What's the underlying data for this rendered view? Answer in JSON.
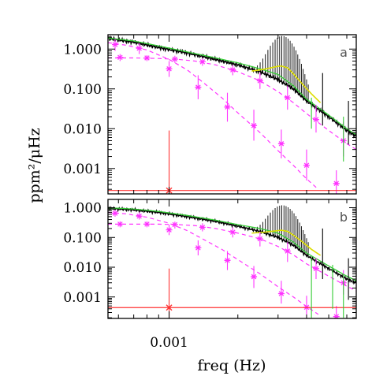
{
  "figure": {
    "xlabel": "freq (Hz)",
    "ylabel": "ppm²/μHz"
  },
  "chart_data": [
    {
      "type": "line",
      "panel_label": "a",
      "xscale": "log",
      "yscale": "log",
      "xlim": [
        0.00054,
        0.0066
      ],
      "ylim": [
        0.00023,
        2.3
      ],
      "x_tick_labels": [
        {
          "value": 0.001,
          "label": "0.001"
        }
      ],
      "y_tick_labels": [
        {
          "value": 1,
          "label": "1.000"
        },
        {
          "value": 0.1,
          "label": "0.100"
        },
        {
          "value": 0.01,
          "label": "0.010"
        },
        {
          "value": 0.001,
          "label": "0.001"
        }
      ],
      "series": [
        {
          "kind": "spectrum",
          "color": "#000000",
          "points": [
            [
              0.00054,
              1.85
            ],
            [
              0.0007,
              1.5
            ],
            [
              0.0009,
              1.1
            ],
            [
              0.0012,
              0.8
            ],
            [
              0.0016,
              0.55
            ],
            [
              0.002,
              0.4
            ],
            [
              0.0025,
              0.27
            ],
            [
              0.003,
              0.17
            ],
            [
              0.0035,
              0.1
            ],
            [
              0.004,
              0.05
            ],
            [
              0.005,
              0.02
            ],
            [
              0.006,
              0.009
            ],
            [
              0.0066,
              0.0065
            ]
          ],
          "peaks": {
            "center": 0.0031,
            "start": 0.0023,
            "end": 0.0041,
            "spacing": 6.8e-05,
            "max": 2.3,
            "width": 0.15
          }
        },
        {
          "kind": "fit",
          "color": "#33cc33",
          "points": [
            [
              0.00054,
              1.9
            ],
            [
              0.0007,
              1.6
            ],
            [
              0.0009,
              1.2
            ],
            [
              0.0012,
              0.85
            ],
            [
              0.0016,
              0.6
            ],
            [
              0.002,
              0.45
            ],
            [
              0.0025,
              0.32
            ],
            [
              0.003,
              0.23
            ],
            [
              0.0035,
              0.12
            ],
            [
              0.004,
              0.055
            ],
            [
              0.005,
              0.022
            ],
            [
              0.006,
              0.01
            ],
            [
              0.0066,
              0.007
            ]
          ]
        },
        {
          "kind": "smooth",
          "color": "#dddd00",
          "points": [
            [
              0.0023,
              0.28
            ],
            [
              0.0026,
              0.31
            ],
            [
              0.0028,
              0.34
            ],
            [
              0.003,
              0.37
            ],
            [
              0.0031,
              0.375
            ],
            [
              0.0033,
              0.34
            ],
            [
              0.0035,
              0.24
            ],
            [
              0.0038,
              0.14
            ],
            [
              0.0042,
              0.075
            ],
            [
              0.0046,
              0.045
            ]
          ]
        },
        {
          "kind": "component",
          "color": "#ff33ff",
          "points": [
            [
              0.00054,
              1.45
            ],
            [
              0.00065,
              1.25
            ],
            [
              0.0008,
              0.95
            ],
            [
              0.001,
              0.55
            ],
            [
              0.0012,
              0.3
            ],
            [
              0.0014,
              0.15
            ],
            [
              0.0017,
              0.06
            ],
            [
              0.002,
              0.025
            ],
            [
              0.0025,
              0.008
            ],
            [
              0.003,
              0.0028
            ],
            [
              0.0035,
              0.0012
            ],
            [
              0.004,
              0.00055
            ],
            [
              0.0045,
              0.0003
            ]
          ],
          "markers": [
            {
              "x": 0.00058,
              "y": 1.3,
              "lo": 0.9,
              "hi": 1.8
            },
            {
              "x": 0.00074,
              "y": 1.05,
              "lo": 0.75,
              "hi": 1.4
            },
            {
              "x": 0.001,
              "y": 0.32,
              "lo": 0.2,
              "hi": 0.5
            },
            {
              "x": 0.00134,
              "y": 0.11,
              "lo": 0.055,
              "hi": 0.22
            },
            {
              "x": 0.0018,
              "y": 0.035,
              "lo": 0.015,
              "hi": 0.08
            },
            {
              "x": 0.00235,
              "y": 0.012,
              "lo": 0.005,
              "hi": 0.03
            },
            {
              "x": 0.0031,
              "y": 0.0042,
              "lo": 0.0018,
              "hi": 0.0095
            },
            {
              "x": 0.004,
              "y": 0.0012,
              "lo": 0.0005,
              "hi": 0.003
            },
            {
              "x": 0.0054,
              "y": 0.00042,
              "lo": 0.00023,
              "hi": 0.0009
            }
          ]
        },
        {
          "kind": "component",
          "color": "#ff33ff",
          "points": [
            [
              0.00054,
              0.6
            ],
            [
              0.0007,
              0.6
            ],
            [
              0.0009,
              0.58
            ],
            [
              0.0011,
              0.55
            ],
            [
              0.0013,
              0.5
            ],
            [
              0.0016,
              0.4
            ],
            [
              0.002,
              0.27
            ],
            [
              0.0025,
              0.16
            ],
            [
              0.003,
              0.085
            ],
            [
              0.0035,
              0.045
            ],
            [
              0.004,
              0.024
            ],
            [
              0.005,
              0.009
            ],
            [
              0.006,
              0.0042
            ],
            [
              0.0066,
              0.003
            ]
          ],
          "markers": [
            {
              "x": 0.00061,
              "y": 0.62,
              "lo": 0.5,
              "hi": 0.75
            },
            {
              "x": 0.0008,
              "y": 0.6,
              "lo": 0.5,
              "hi": 0.7
            },
            {
              "x": 0.00106,
              "y": 0.56,
              "lo": 0.45,
              "hi": 0.68
            },
            {
              "x": 0.0014,
              "y": 0.48,
              "lo": 0.38,
              "hi": 0.6
            },
            {
              "x": 0.0019,
              "y": 0.3,
              "lo": 0.22,
              "hi": 0.4
            },
            {
              "x": 0.0025,
              "y": 0.16,
              "lo": 0.1,
              "hi": 0.25
            },
            {
              "x": 0.0033,
              "y": 0.06,
              "lo": 0.03,
              "hi": 0.12
            },
            {
              "x": 0.0044,
              "y": 0.017,
              "lo": 0.008,
              "hi": 0.04
            },
            {
              "x": 0.0058,
              "y": 0.005,
              "lo": 0.002,
              "hi": 0.015
            }
          ]
        },
        {
          "kind": "noise",
          "color": "#ff3333",
          "level": 0.00028,
          "marker": {
            "x": 0.001,
            "y": 0.00028,
            "lo": 0.00023,
            "hi": 0.009
          }
        }
      ],
      "green_error_bars": [
        {
          "x": 0.0042,
          "lo": 0.01,
          "hi": 0.06
        },
        {
          "x": 0.0058,
          "lo": 0.0015,
          "hi": 0.02
        }
      ],
      "black_error_bars": [
        {
          "x": 0.0047,
          "lo": 0.012,
          "hi": 0.25
        },
        {
          "x": 0.0061,
          "lo": 0.004,
          "hi": 0.05
        }
      ]
    },
    {
      "type": "line",
      "panel_label": "b",
      "xscale": "log",
      "yscale": "log",
      "xlim": [
        0.00054,
        0.0066
      ],
      "ylim": [
        0.00019,
        1.9
      ],
      "x_tick_labels": [
        {
          "value": 0.001,
          "label": "0.001"
        }
      ],
      "y_tick_labels": [
        {
          "value": 1,
          "label": "1.000"
        },
        {
          "value": 0.1,
          "label": "0.100"
        },
        {
          "value": 0.01,
          "label": "0.010"
        },
        {
          "value": 0.001,
          "label": "0.001"
        }
      ],
      "series": [
        {
          "kind": "spectrum",
          "color": "#000000",
          "points": [
            [
              0.00054,
              0.95
            ],
            [
              0.0007,
              0.85
            ],
            [
              0.0009,
              0.7
            ],
            [
              0.0012,
              0.5
            ],
            [
              0.0016,
              0.35
            ],
            [
              0.002,
              0.24
            ],
            [
              0.0025,
              0.16
            ],
            [
              0.003,
              0.1
            ],
            [
              0.0035,
              0.055
            ],
            [
              0.004,
              0.025
            ],
            [
              0.005,
              0.009
            ],
            [
              0.006,
              0.004
            ],
            [
              0.0066,
              0.003
            ]
          ],
          "peaks": {
            "center": 0.0031,
            "start": 0.0023,
            "end": 0.0041,
            "spacing": 6.8e-05,
            "max": 1.3,
            "width": 0.15
          }
        },
        {
          "kind": "fit",
          "color": "#33cc33",
          "points": [
            [
              0.00054,
              1.0
            ],
            [
              0.0007,
              0.9
            ],
            [
              0.0009,
              0.75
            ],
            [
              0.0012,
              0.55
            ],
            [
              0.0016,
              0.38
            ],
            [
              0.002,
              0.27
            ],
            [
              0.0025,
              0.2
            ],
            [
              0.003,
              0.14
            ],
            [
              0.0035,
              0.07
            ],
            [
              0.004,
              0.03
            ],
            [
              0.005,
              0.011
            ],
            [
              0.006,
              0.005
            ],
            [
              0.0066,
              0.0035
            ]
          ]
        },
        {
          "kind": "smooth",
          "color": "#dddd00",
          "points": [
            [
              0.0023,
              0.14
            ],
            [
              0.0026,
              0.15
            ],
            [
              0.0028,
              0.16
            ],
            [
              0.003,
              0.17
            ],
            [
              0.0031,
              0.175
            ],
            [
              0.0033,
              0.16
            ],
            [
              0.0035,
              0.12
            ],
            [
              0.0038,
              0.075
            ],
            [
              0.0042,
              0.04
            ],
            [
              0.0046,
              0.025
            ]
          ]
        },
        {
          "kind": "component",
          "color": "#ff33ff",
          "points": [
            [
              0.00054,
              0.7
            ],
            [
              0.00065,
              0.62
            ],
            [
              0.0008,
              0.48
            ],
            [
              0.001,
              0.3
            ],
            [
              0.0012,
              0.17
            ],
            [
              0.0014,
              0.09
            ],
            [
              0.0017,
              0.04
            ],
            [
              0.002,
              0.018
            ],
            [
              0.0025,
              0.006
            ],
            [
              0.003,
              0.0022
            ],
            [
              0.0035,
              0.001
            ],
            [
              0.004,
              0.00048
            ],
            [
              0.0045,
              0.00026
            ]
          ],
          "markers": [
            {
              "x": 0.00058,
              "y": 0.65,
              "lo": 0.5,
              "hi": 0.85
            },
            {
              "x": 0.00074,
              "y": 0.52,
              "lo": 0.4,
              "hi": 0.7
            },
            {
              "x": 0.001,
              "y": 0.18,
              "lo": 0.12,
              "hi": 0.27
            },
            {
              "x": 0.00134,
              "y": 0.045,
              "lo": 0.025,
              "hi": 0.08
            },
            {
              "x": 0.0018,
              "y": 0.017,
              "lo": 0.008,
              "hi": 0.035
            },
            {
              "x": 0.00235,
              "y": 0.0048,
              "lo": 0.002,
              "hi": 0.011
            },
            {
              "x": 0.0031,
              "y": 0.0013,
              "lo": 0.0006,
              "hi": 0.0035
            },
            {
              "x": 0.004,
              "y": 0.00045,
              "lo": 0.0002,
              "hi": 0.0011
            },
            {
              "x": 0.0054,
              "y": 0.00022,
              "lo": 0.00019,
              "hi": 0.0005
            }
          ]
        },
        {
          "kind": "component",
          "color": "#ff33ff",
          "points": [
            [
              0.00054,
              0.28
            ],
            [
              0.0007,
              0.28
            ],
            [
              0.0009,
              0.28
            ],
            [
              0.0011,
              0.27
            ],
            [
              0.0013,
              0.25
            ],
            [
              0.0016,
              0.2
            ],
            [
              0.002,
              0.14
            ],
            [
              0.0025,
              0.09
            ],
            [
              0.003,
              0.05
            ],
            [
              0.0035,
              0.026
            ],
            [
              0.004,
              0.013
            ],
            [
              0.005,
              0.005
            ],
            [
              0.006,
              0.0023
            ],
            [
              0.0066,
              0.0016
            ]
          ],
          "markers": [
            {
              "x": 0.00061,
              "y": 0.28,
              "lo": 0.22,
              "hi": 0.35
            },
            {
              "x": 0.0008,
              "y": 0.28,
              "lo": 0.22,
              "hi": 0.35
            },
            {
              "x": 0.00106,
              "y": 0.27,
              "lo": 0.2,
              "hi": 0.34
            },
            {
              "x": 0.0014,
              "y": 0.22,
              "lo": 0.16,
              "hi": 0.3
            },
            {
              "x": 0.0019,
              "y": 0.15,
              "lo": 0.1,
              "hi": 0.22
            },
            {
              "x": 0.0025,
              "y": 0.09,
              "lo": 0.05,
              "hi": 0.15
            },
            {
              "x": 0.0033,
              "y": 0.035,
              "lo": 0.015,
              "hi": 0.07
            },
            {
              "x": 0.0044,
              "y": 0.009,
              "lo": 0.004,
              "hi": 0.02
            },
            {
              "x": 0.0058,
              "y": 0.003,
              "lo": 0.0012,
              "hi": 0.008
            }
          ]
        },
        {
          "kind": "noise",
          "color": "#ff3333",
          "level": 0.00044,
          "marker": {
            "x": 0.001,
            "y": 0.00044,
            "lo": 0.00019,
            "hi": 0.009
          }
        }
      ],
      "green_error_bars": [
        {
          "x": 0.0042,
          "lo": 0.0002,
          "hi": 0.02
        },
        {
          "x": 0.0052,
          "lo": 0.0004,
          "hi": 0.012
        },
        {
          "x": 0.0058,
          "lo": 0.0002,
          "hi": 0.006
        }
      ],
      "black_error_bars": [
        {
          "x": 0.0047,
          "lo": 0.004,
          "hi": 0.2
        },
        {
          "x": 0.0061,
          "lo": 0.0008,
          "hi": 0.02
        }
      ]
    }
  ]
}
